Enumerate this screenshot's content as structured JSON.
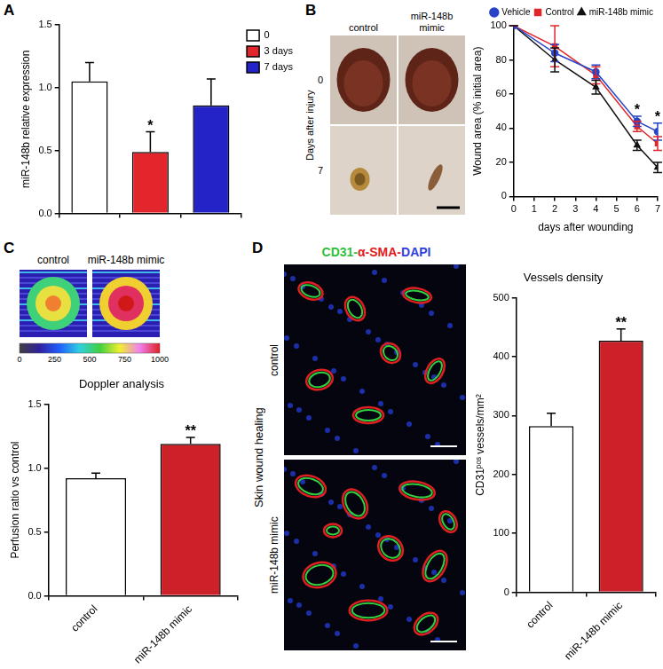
{
  "chart_data": [
    {
      "panel_label": "A",
      "type": "bar",
      "categories": [
        null,
        null,
        null
      ],
      "series": [
        {
          "name": "0",
          "color": "#ffffff",
          "values": [
            1.05,
            null,
            null
          ],
          "errors": [
            0.15,
            null,
            null
          ]
        },
        {
          "name": "3 days",
          "color": "#e3262c",
          "values": [
            null,
            0.49,
            null
          ],
          "errors": [
            null,
            0.16,
            null
          ]
        },
        {
          "name": "7 days",
          "color": "#2323c8",
          "values": [
            null,
            null,
            0.86
          ],
          "errors": [
            null,
            null,
            0.21
          ]
        }
      ],
      "y_label": "miR-148b relative expression",
      "ylim": [
        0,
        1.5
      ],
      "yticks": [
        {
          "value": 0,
          "label": "0.0"
        },
        0.5,
        {
          "value": 1,
          "label": "1.0"
        },
        1.5
      ],
      "grid": false,
      "legend": "right",
      "annotations": [
        {
          "text": "*",
          "series": "3 days"
        }
      ]
    },
    {
      "panel_label": "B",
      "type": "line",
      "x": [
        0,
        2,
        4,
        6,
        7
      ],
      "series": [
        {
          "name": "Vehicle",
          "color": "#2844c8",
          "marker": "circle",
          "values": [
            100,
            84,
            73,
            44,
            38
          ],
          "errors": [
            0,
            5,
            4,
            3,
            5
          ]
        },
        {
          "name": "Control",
          "color": "#e0262b",
          "marker": "square",
          "values": [
            100,
            88,
            71,
            41,
            31
          ],
          "errors": [
            0,
            12,
            5,
            3,
            4
          ]
        },
        {
          "name": "miR-148b mimic",
          "color": "#111111",
          "marker": "triangle",
          "values": [
            100,
            80,
            64,
            30,
            17
          ],
          "errors": [
            0,
            7,
            4,
            3,
            3
          ]
        }
      ],
      "x_label": "days after wounding",
      "y_label": "Wound area (% initial area)",
      "xlim": [
        0,
        7
      ],
      "xticks": [
        0,
        1,
        2,
        3,
        4,
        5,
        6,
        7
      ],
      "ylim": [
        0,
        100
      ],
      "yticks": [
        0,
        20,
        40,
        60,
        80,
        100
      ],
      "grid": false,
      "legend": "top right",
      "annotations": [
        {
          "text": "*",
          "x": 6
        },
        {
          "text": "*",
          "x": 7
        }
      ]
    },
    {
      "panel_label": "C",
      "type": "bar",
      "title": "Doppler analysis",
      "categories": [
        "control",
        "miR-148b mimic"
      ],
      "values": [
        0.92,
        1.19
      ],
      "errors": [
        0.04,
        0.05
      ],
      "colors": [
        "#ffffff",
        "#cc2128"
      ],
      "y_label": "Perfusion ratio vs control",
      "ylim": [
        0,
        1.5
      ],
      "yticks": [
        {
          "value": 0,
          "label": "0.0"
        },
        0.5,
        {
          "value": 1,
          "label": "1.0"
        },
        1.5
      ],
      "grid": false,
      "annotations": [
        {
          "text": "**",
          "category": "miR-148b mimic"
        }
      ]
    },
    {
      "panel_label": "D",
      "type": "bar",
      "title": "Vessels density",
      "categories": [
        "control",
        "miR-148b mimic"
      ],
      "values": [
        282,
        427
      ],
      "errors": [
        22,
        20
      ],
      "colors": [
        "#ffffff",
        "#cc2128"
      ],
      "y_label": "CD31ᵖᵒˢ vessels/mm²",
      "ylim": [
        0,
        500
      ],
      "yticks": [
        0,
        100,
        200,
        300,
        400,
        500
      ],
      "grid": false,
      "annotations": [
        {
          "text": "**",
          "category": "miR-148b mimic"
        }
      ]
    }
  ],
  "images": [
    {
      "panel": "B",
      "columns": [
        "control",
        "miR-148b mimic"
      ],
      "row_title": "Days after injury",
      "rows": [
        "0",
        "7"
      ]
    },
    {
      "panel": "C",
      "columns": [
        "control",
        "miR-148b mimic"
      ],
      "colorbar_ticks": [
        0,
        250,
        500,
        750,
        1000
      ]
    },
    {
      "panel": "D",
      "stain_labels": [
        {
          "text": "CD31-",
          "color": "#2fbf3a"
        },
        {
          "text": "α-SMA-",
          "color": "#e02020"
        },
        {
          "text": "DAPI",
          "color": "#3040e0"
        }
      ],
      "row_title": "Skin wound healing",
      "rows": [
        "control",
        "miR-148b mimic"
      ]
    }
  ]
}
